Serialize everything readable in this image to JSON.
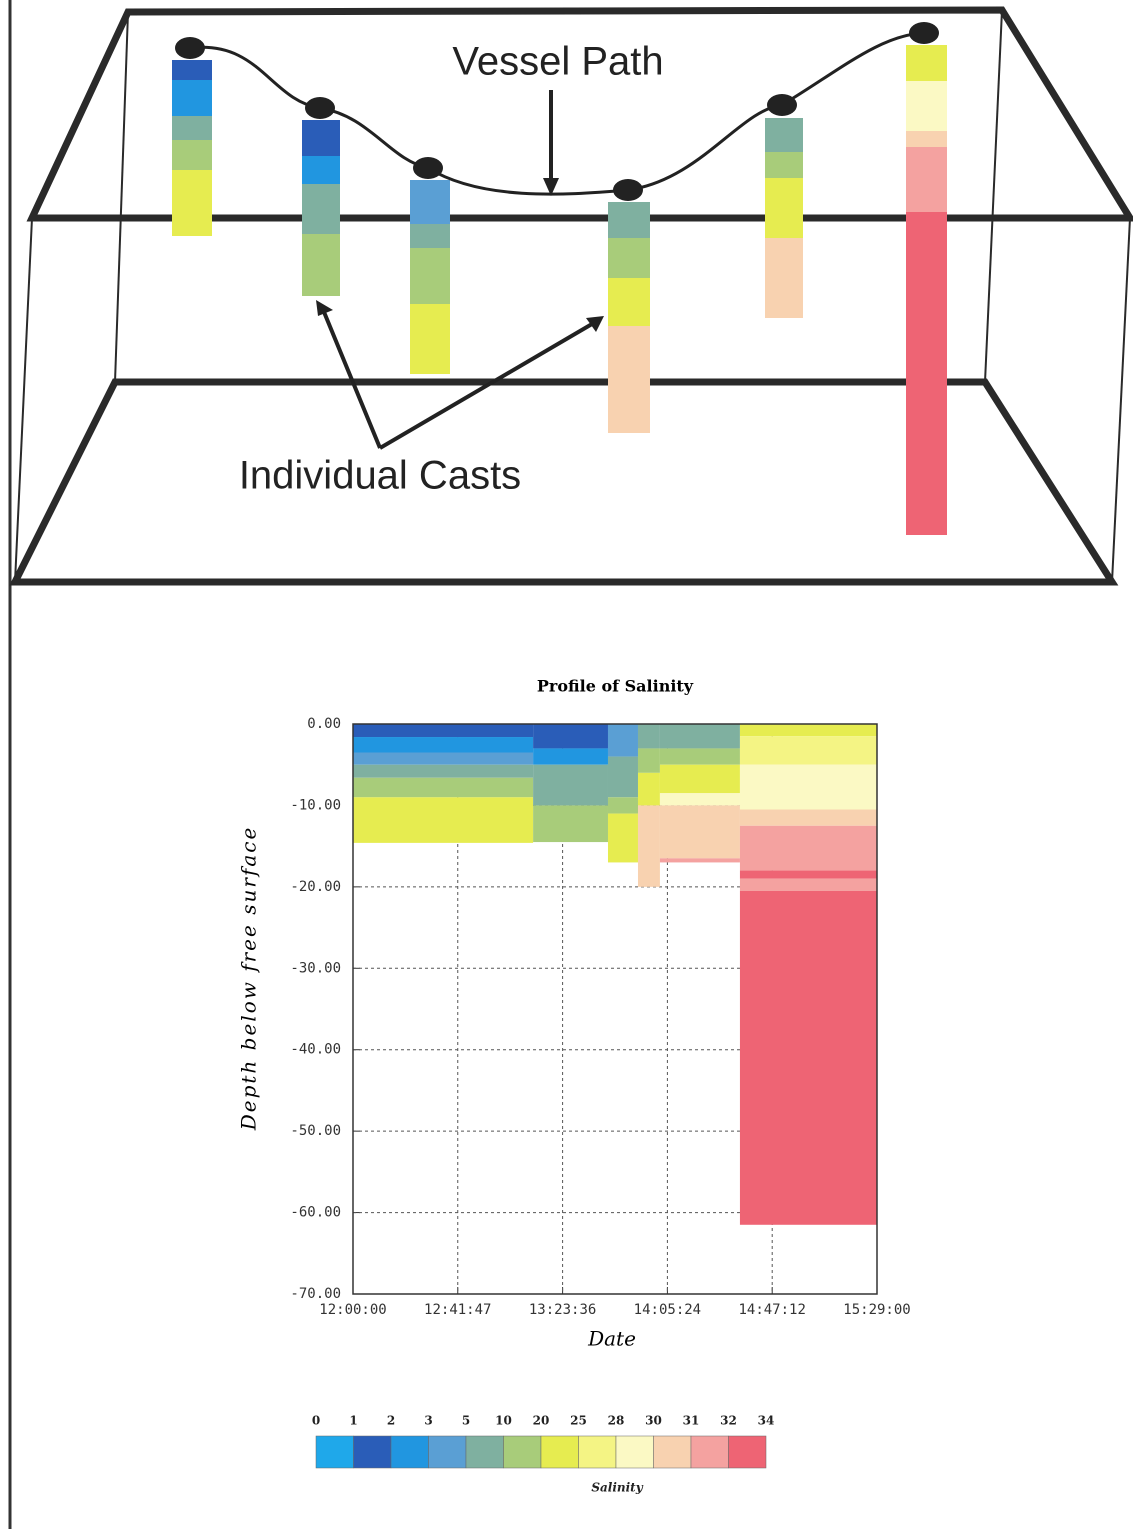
{
  "diagram": {
    "vessel_label": "Vessel Path",
    "casts_label": "Individual Casts"
  },
  "chart_data": {
    "type": "depth-profile",
    "title": "Profile of Salinity",
    "x_label": "Date",
    "y_label": "Depth below free surface",
    "xlim": [
      43200,
      55740
    ],
    "xticks": [
      {
        "value": 43200,
        "label": "12:00:00"
      },
      {
        "value": 45707,
        "label": "12:41:47"
      },
      {
        "value": 48216,
        "label": "13:23:36"
      },
      {
        "value": 50724,
        "label": "14:05:24"
      },
      {
        "value": 53232,
        "label": "14:47:12"
      },
      {
        "value": 55740,
        "label": "15:29:00"
      }
    ],
    "ylim": [
      -70,
      0
    ],
    "yticks": [
      {
        "value": 0,
        "label": "0.00"
      },
      {
        "value": -10,
        "label": "-10.00"
      },
      {
        "value": -20,
        "label": "-20.00"
      },
      {
        "value": -30,
        "label": "-30.00"
      },
      {
        "value": -40,
        "label": "-40.00"
      },
      {
        "value": -50,
        "label": "-50.00"
      },
      {
        "value": -60,
        "label": "-60.00"
      },
      {
        "value": -70,
        "label": "-70.00"
      }
    ],
    "grid": true,
    "casts": [
      {
        "x": 43200,
        "layers": [
          {
            "depth": [
              0,
              -1.6
            ],
            "salinity": 1.5
          },
          {
            "depth": [
              -1.6,
              -3.5
            ],
            "salinity": 2.5
          },
          {
            "depth": [
              -3.5,
              -5
            ],
            "salinity": 4
          },
          {
            "depth": [
              -5,
              -6.6
            ],
            "salinity": 7
          },
          {
            "depth": [
              -6.6,
              -9
            ],
            "salinity": 15
          },
          {
            "depth": [
              -9,
              -14.6
            ],
            "salinity": 22
          }
        ]
      },
      {
        "x": 47510,
        "layers": [
          {
            "depth": [
              0,
              -3
            ],
            "salinity": 1.5
          },
          {
            "depth": [
              -3,
              -5
            ],
            "salinity": 2.5
          },
          {
            "depth": [
              -5,
              -10
            ],
            "salinity": 7
          },
          {
            "depth": [
              -10,
              -14.5
            ],
            "salinity": 15
          }
        ]
      },
      {
        "x": 49302,
        "layers": [
          {
            "depth": [
              0,
              -4
            ],
            "salinity": 4
          },
          {
            "depth": [
              -4,
              -9
            ],
            "salinity": 7
          },
          {
            "depth": [
              -9,
              -11
            ],
            "salinity": 15
          },
          {
            "depth": [
              -11,
              -17
            ],
            "salinity": 22
          }
        ]
      },
      {
        "x": 50020,
        "layers": [
          {
            "depth": [
              0,
              -3
            ],
            "salinity": 7
          },
          {
            "depth": [
              -3,
              -6
            ],
            "salinity": 15
          },
          {
            "depth": [
              -6,
              -10
            ],
            "salinity": 22
          },
          {
            "depth": [
              -10,
              -20
            ],
            "salinity": 30.5
          }
        ]
      },
      {
        "x": 50545,
        "layers": [
          {
            "depth": [
              0,
              -3
            ],
            "salinity": 7
          },
          {
            "depth": [
              -3,
              -5
            ],
            "salinity": 15
          },
          {
            "depth": [
              -5,
              -8.5
            ],
            "salinity": 22
          },
          {
            "depth": [
              -8.5,
              -10
            ],
            "salinity": 29
          },
          {
            "depth": [
              -10,
              -16.5
            ],
            "salinity": 30.5
          },
          {
            "depth": [
              -16.5,
              -17
            ],
            "salinity": 31.5
          }
        ]
      },
      {
        "x": 52460,
        "layers": [
          {
            "depth": [
              0,
              -1.5
            ],
            "salinity": 22
          },
          {
            "depth": [
              -1.5,
              -5
            ],
            "salinity": 26
          },
          {
            "depth": [
              -5,
              -10.5
            ],
            "salinity": 29
          },
          {
            "depth": [
              -10.5,
              -12.5
            ],
            "salinity": 30.5
          },
          {
            "depth": [
              -12.5,
              -18
            ],
            "salinity": 31.5
          },
          {
            "depth": [
              -18,
              -19
            ],
            "salinity": 33
          },
          {
            "depth": [
              -19,
              -20.5
            ],
            "salinity": 31.5
          },
          {
            "depth": [
              -20.5,
              -61.5
            ],
            "salinity": 33
          }
        ]
      }
    ],
    "colorbar": {
      "label": "Salinity",
      "ticks": [
        0,
        1,
        2,
        3,
        5,
        10,
        20,
        25,
        28,
        30,
        31,
        32,
        34
      ],
      "colors": [
        "#1fa8ea",
        "#2a5db8",
        "#2196e0",
        "#5a9fd4",
        "#7fb0a0",
        "#a8cc7a",
        "#e6ec50",
        "#f4f484",
        "#fbf9c4",
        "#f8d2b0",
        "#f4a2a0",
        "#ee6474"
      ]
    }
  }
}
